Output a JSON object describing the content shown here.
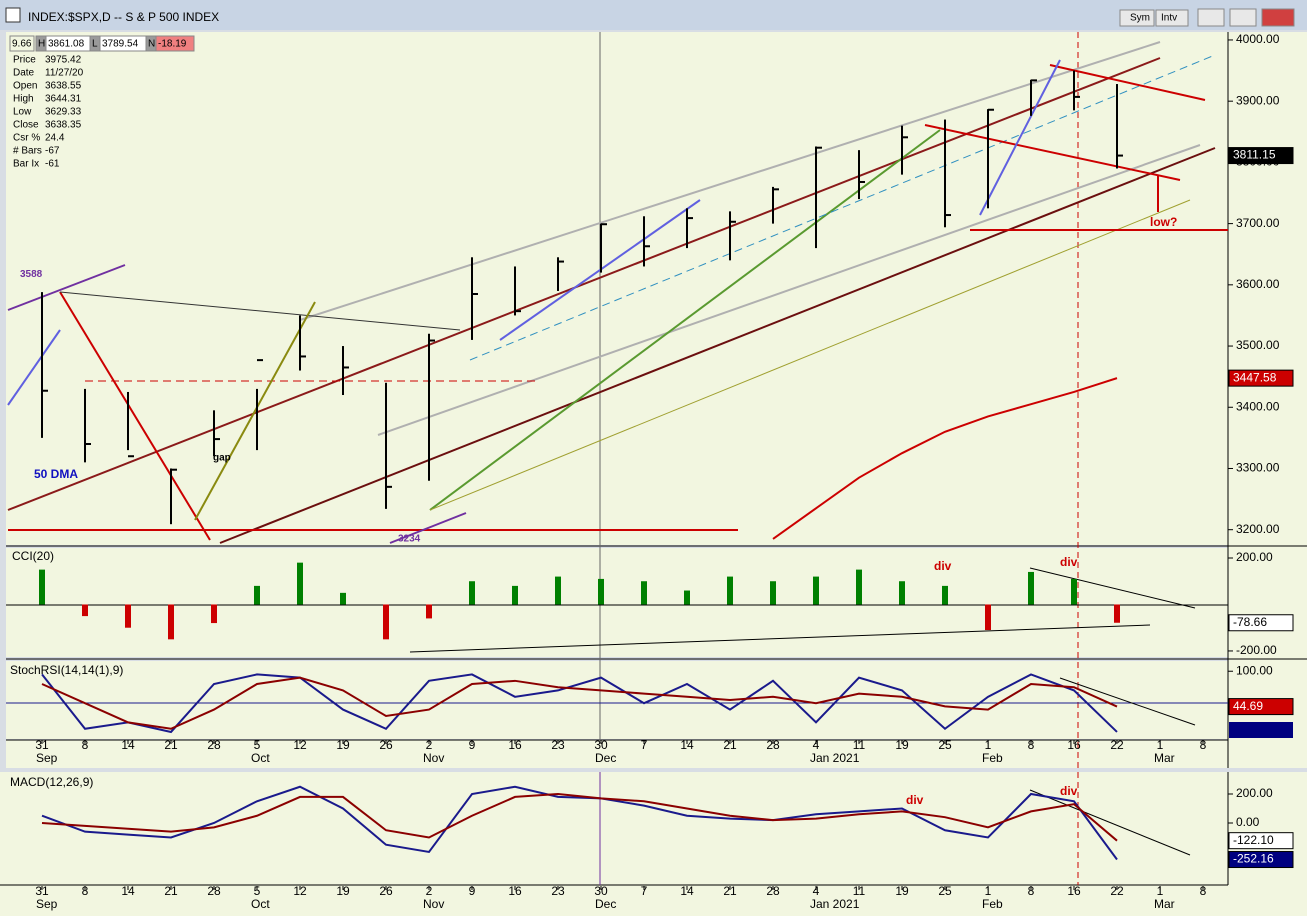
{
  "window": {
    "title": "INDEX:$SPX,D -- S & P 500 INDEX",
    "buttons": [
      "Sym",
      "Intv"
    ]
  },
  "quote_bar": [
    "9.66",
    "H",
    "3861.08",
    "L",
    "3789.54",
    "N",
    "-18.19"
  ],
  "info": {
    "rows": [
      [
        "Price",
        "3975.42"
      ],
      [
        "Date",
        "11/27/20"
      ],
      [
        "Open",
        "3638.55"
      ],
      [
        "High",
        "3644.31"
      ],
      [
        "Low",
        "3629.33"
      ],
      [
        "Close",
        "3638.35"
      ],
      [
        "Csr %",
        "24.4"
      ],
      [
        "# Bars",
        "-67"
      ],
      [
        "Bar Ix",
        "-61"
      ]
    ]
  },
  "chart_data": [
    {
      "type": "ohlc",
      "color": "#000000",
      "categories": [
        "31",
        "8",
        "14",
        "21",
        "28",
        "5",
        "12",
        "19",
        "26",
        "2",
        "9",
        "16",
        "23",
        "30",
        "7",
        "14",
        "21",
        "28",
        "4",
        "11",
        "19",
        "25",
        "1",
        "8",
        "16",
        "22",
        "1",
        "8"
      ],
      "month_labels": [
        "Sep",
        null,
        null,
        null,
        null,
        "Oct",
        null,
        null,
        null,
        "Nov",
        null,
        null,
        null,
        "Dec",
        null,
        null,
        null,
        null,
        "Jan 2021",
        null,
        null,
        null,
        "Feb",
        null,
        null,
        null,
        "Mar",
        null
      ],
      "high": [
        3588,
        3430,
        3425,
        3300,
        3395,
        3430,
        3550,
        3500,
        3440,
        3520,
        3645,
        3630,
        3645,
        3700,
        3712,
        3725,
        3720,
        3760,
        3826,
        3820,
        3860,
        3870,
        3887,
        3935,
        3950,
        3928,
        null,
        null
      ],
      "low": [
        3350,
        3310,
        3330,
        3209,
        3320,
        3330,
        3460,
        3420,
        3234,
        3280,
        3510,
        3550,
        3590,
        3620,
        3630,
        3660,
        3640,
        3700,
        3660,
        3740,
        3780,
        3694,
        3725,
        3876,
        3885,
        3790,
        null,
        null
      ],
      "close": [
        3427,
        3340,
        3320,
        3298,
        3348,
        3477,
        3483,
        3465,
        3270,
        3509,
        3585,
        3557,
        3638,
        3699,
        3663,
        3709,
        3703,
        3756,
        3824,
        3768,
        3841,
        3714,
        3886,
        3934,
        3907,
        3811.15,
        null,
        null
      ],
      "dma": {
        "color": "#cc0000",
        "values": [
          null,
          null,
          null,
          null,
          null,
          null,
          null,
          null,
          null,
          null,
          null,
          null,
          null,
          null,
          null,
          null,
          null,
          3185,
          3235,
          3285,
          3325,
          3360,
          3385,
          3405,
          3425,
          3447.58,
          null,
          null
        ]
      },
      "annotations": [
        "gap",
        "50 DMA",
        "low?"
      ],
      "ylim": [
        3175,
        4013
      ],
      "yticks": [
        {
          "value": 3200,
          "label": "3200.00"
        },
        {
          "value": 3300,
          "label": "3300.00"
        },
        {
          "value": 3400,
          "label": "3400.00"
        },
        {
          "value": 3500,
          "label": "3500.00"
        },
        {
          "value": 3600,
          "label": "3600.00"
        },
        {
          "value": 3700,
          "label": "3700.00"
        },
        {
          "value": 3800,
          "label": "3800.00"
        },
        {
          "value": 3900,
          "label": "3900.00"
        },
        {
          "value": 4000,
          "label": "4000.00"
        }
      ]
    },
    {
      "type": "histogram",
      "title": "CCI(20)",
      "pos_color": "#008000",
      "neg_color": "#cc0000",
      "values": [
        150,
        -50,
        -100,
        -150,
        -80,
        80,
        180,
        50,
        -150,
        -60,
        100,
        80,
        120,
        110,
        100,
        60,
        120,
        100,
        120,
        150,
        100,
        80,
        -110,
        140,
        110,
        -78.66,
        null,
        null
      ],
      "annotations": [
        "div",
        "div"
      ],
      "ylim": [
        -226,
        243
      ],
      "yticks": [
        {
          "value": 200,
          "label": "200.00"
        },
        {
          "value": -200,
          "label": "-200.00"
        }
      ]
    },
    {
      "type": "line",
      "title": "StochRSI(14,14(1),9)",
      "series": [
        {
          "color": "#1a1a8c",
          "values": [
            95,
            10,
            20,
            5,
            80,
            95,
            90,
            40,
            10,
            85,
            95,
            60,
            70,
            90,
            50,
            80,
            40,
            85,
            20,
            90,
            70,
            10,
            60,
            95,
            70,
            5,
            null,
            null
          ]
        },
        {
          "color": "#8b0000",
          "values": [
            80,
            50,
            20,
            10,
            40,
            80,
            90,
            70,
            30,
            40,
            80,
            85,
            75,
            70,
            65,
            60,
            55,
            60,
            50,
            65,
            60,
            45,
            40,
            80,
            75,
            44.69,
            null,
            null
          ]
        }
      ],
      "ylim": [
        -6,
        116
      ],
      "yticks": [
        {
          "value": 100,
          "label": "100.00"
        }
      ]
    },
    {
      "type": "line",
      "title": "MACD(12,26,9)",
      "series": [
        {
          "color": "#1a1a8c",
          "values": [
            50,
            -60,
            -80,
            -100,
            0,
            150,
            250,
            100,
            -150,
            -200,
            200,
            250,
            180,
            170,
            120,
            50,
            30,
            20,
            60,
            80,
            100,
            -50,
            -100,
            200,
            150,
            -252.16,
            null,
            null
          ]
        },
        {
          "color": "#8b0000",
          "values": [
            0,
            -20,
            -40,
            -60,
            -30,
            50,
            180,
            180,
            -50,
            -100,
            50,
            180,
            200,
            170,
            150,
            100,
            50,
            20,
            30,
            60,
            80,
            40,
            -30,
            80,
            130,
            -122.1,
            null,
            null
          ],
          "value_labels": [
            null,
            null,
            null,
            null,
            null,
            null,
            null,
            null,
            null,
            null,
            null,
            null,
            null,
            null,
            null,
            null,
            null,
            null,
            null,
            null,
            null,
            null,
            null,
            null,
            null,
            "-122.10",
            null,
            null
          ]
        }
      ],
      "annotations": [
        "div",
        "div"
      ],
      "ylim": [
        -428,
        345
      ],
      "yticks": [
        {
          "value": 200,
          "label": "200.00"
        },
        {
          "value": 0,
          "label": "0.00"
        }
      ]
    }
  ]
}
